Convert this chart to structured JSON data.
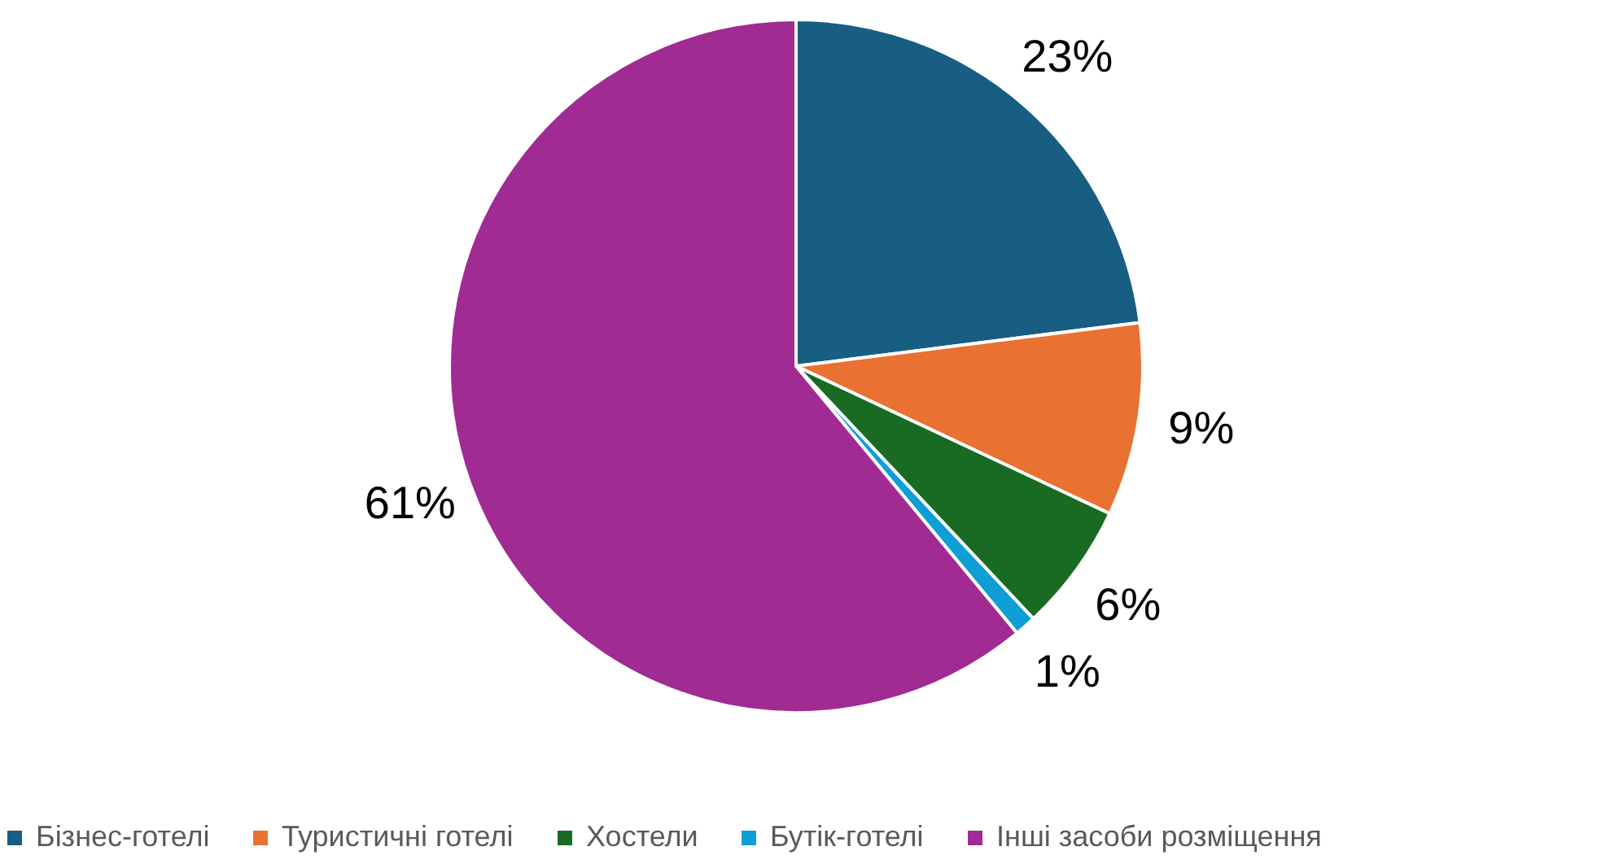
{
  "chart_data": {
    "type": "pie",
    "categories": [
      "Бізнес-готелі",
      "Туристичні готелі",
      "Хостели",
      "Бутік-готелі",
      "Інші засоби розміщення"
    ],
    "values": [
      23,
      9,
      6,
      1,
      61
    ],
    "colors": [
      "#175e82",
      "#e97132",
      "#196b24",
      "#0f9ed5",
      "#a02b93"
    ],
    "value_labels": [
      "23%",
      "9%",
      "6%",
      "1%",
      "61%"
    ],
    "legend": "bottom"
  }
}
